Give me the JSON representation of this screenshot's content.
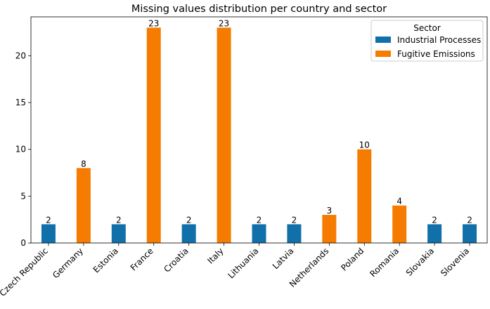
{
  "chart_data": {
    "type": "bar",
    "title": "Missing values distribution per country and sector",
    "xlabel": "",
    "ylabel": "",
    "categories": [
      "Czech Republic",
      "Germany",
      "Estonia",
      "France",
      "Croatia",
      "Italy",
      "Lithuania",
      "Latvia",
      "Netherlands",
      "Poland",
      "Romania",
      "Slovakia",
      "Slovenia"
    ],
    "series": [
      {
        "name": "Industrial Processes",
        "color": "#1170aa",
        "values": [
          2,
          null,
          2,
          null,
          2,
          null,
          2,
          2,
          null,
          null,
          null,
          2,
          2
        ]
      },
      {
        "name": "Fugitive Emissions",
        "color": "#f57c00",
        "values": [
          null,
          8,
          null,
          23,
          null,
          23,
          null,
          null,
          3,
          10,
          4,
          null,
          null
        ]
      }
    ],
    "ylim": [
      0,
      24.15
    ],
    "yticks": [
      0,
      5,
      10,
      15,
      20
    ],
    "grid": false,
    "legend": {
      "title": "Sector",
      "placement": "top-right"
    }
  }
}
